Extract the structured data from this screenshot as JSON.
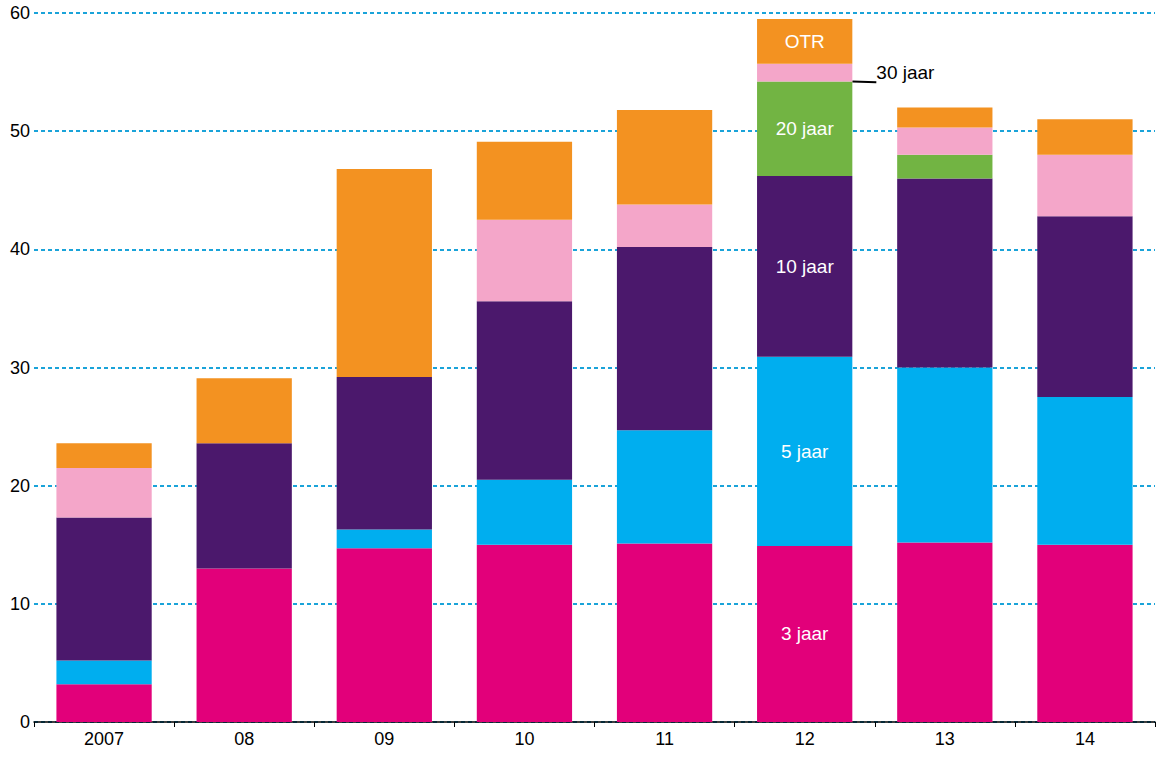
{
  "chart_data": {
    "type": "bar",
    "stacked": true,
    "grid": true,
    "categories": [
      "2007",
      "08",
      "09",
      "10",
      "11",
      "12",
      "13",
      "14"
    ],
    "ylim": [
      0,
      60
    ],
    "yticks": [
      0,
      10,
      20,
      30,
      40,
      50,
      60
    ],
    "series": [
      {
        "name": "3 jaar",
        "color": "#e2007a",
        "values": [
          3.2,
          13.0,
          14.7,
          15.0,
          15.1,
          14.9,
          15.2,
          15.0
        ]
      },
      {
        "name": "5 jaar",
        "color": "#00aeef",
        "values": [
          2.0,
          null,
          1.6,
          5.5,
          9.6,
          16.0,
          14.8,
          12.5
        ]
      },
      {
        "name": "10 jaar",
        "color": "#4b186c",
        "values": [
          12.1,
          10.6,
          12.9,
          15.1,
          15.5,
          15.3,
          16.0,
          15.3
        ]
      },
      {
        "name": "20 jaar",
        "color": "#72b443",
        "values": [
          null,
          null,
          null,
          null,
          null,
          8.0,
          2.0,
          null
        ]
      },
      {
        "name": "30 jaar",
        "color": "#f4a6c9",
        "values": [
          4.2,
          null,
          null,
          6.9,
          3.6,
          1.5,
          2.3,
          5.2
        ]
      },
      {
        "name": "OTR",
        "color": "#f39221",
        "values": [
          2.1,
          5.5,
          17.6,
          6.6,
          8.0,
          3.8,
          1.7,
          3.0
        ]
      }
    ]
  }
}
